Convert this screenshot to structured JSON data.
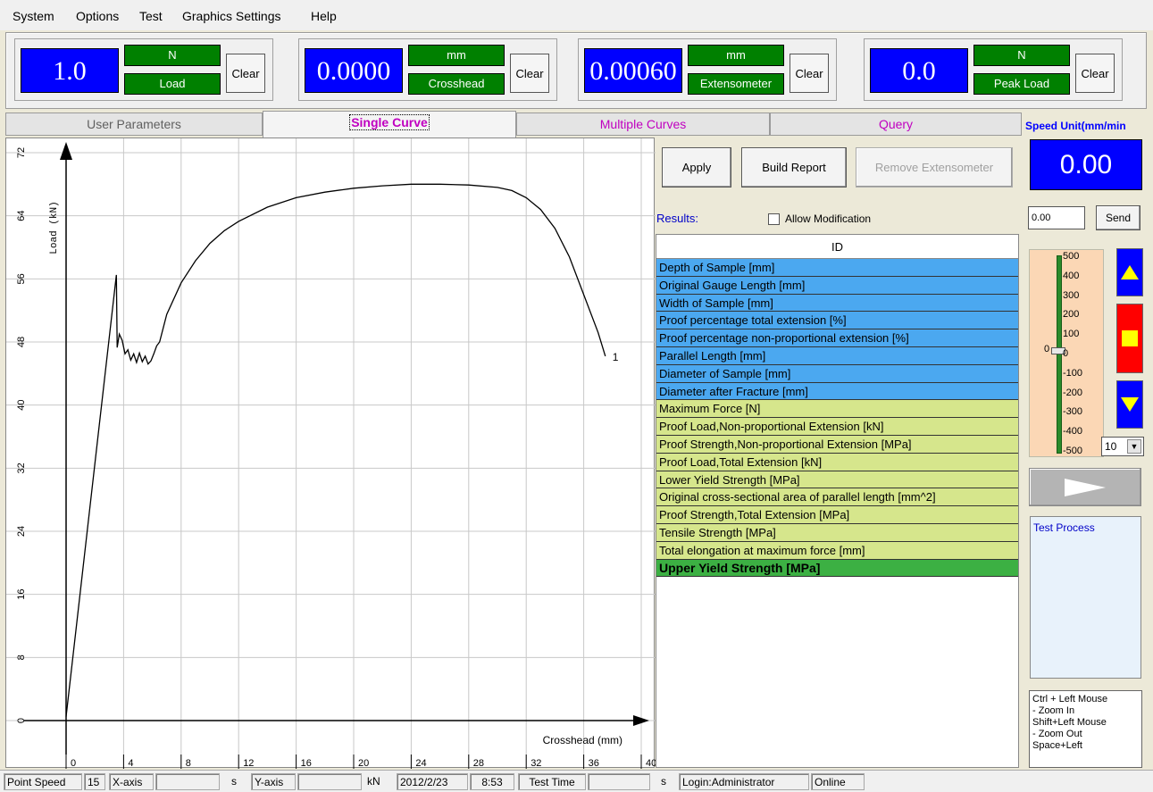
{
  "menu": [
    "System",
    "Options",
    "Test",
    "Graphics Settings",
    "Help"
  ],
  "readouts": [
    {
      "value": "1.0",
      "unit": "N",
      "name": "Load",
      "clear": "Clear"
    },
    {
      "value": "0.0000",
      "unit": "mm",
      "name": "Crosshead",
      "clear": "Clear"
    },
    {
      "value": "0.00060",
      "unit": "mm",
      "name": "Extensometer",
      "clear": "Clear"
    },
    {
      "value": "0.0",
      "unit": "N",
      "name": "Peak Load",
      "clear": "Clear"
    }
  ],
  "tabs": [
    {
      "label": "User Parameters",
      "active": false,
      "color": "#606060"
    },
    {
      "label": "Single Curve",
      "active": true,
      "color": "#c000c0"
    },
    {
      "label": "Multiple Curves",
      "active": false,
      "color": "#c000c0"
    },
    {
      "label": "Query",
      "active": false,
      "color": "#c000c0"
    }
  ],
  "chart_data": {
    "type": "line",
    "xlabel": "Crosshead (mm)",
    "ylabel": "Load (kN)",
    "xlim": [
      0,
      40
    ],
    "ylim": [
      0,
      72
    ],
    "x_ticks": [
      0,
      4,
      8,
      12,
      16,
      20,
      24,
      28,
      32,
      36,
      40
    ],
    "y_ticks": [
      0,
      8,
      16,
      24,
      32,
      40,
      48,
      56,
      64,
      72
    ],
    "series": [
      {
        "name": "1",
        "x": [
          0,
          3.5,
          3.55,
          3.7,
          3.9,
          4.1,
          4.3,
          4.5,
          4.7,
          4.9,
          5.1,
          5.3,
          5.5,
          5.7,
          5.9,
          6.1,
          6.3,
          6.5,
          7,
          8,
          9,
          10,
          11,
          12,
          14,
          16,
          18,
          20,
          22,
          24,
          26,
          28,
          30,
          31,
          32,
          33,
          34,
          35,
          36,
          37,
          37.5
        ],
        "y": [
          0.5,
          56.5,
          47.3,
          49,
          48.2,
          46.5,
          47,
          45.7,
          46.5,
          45.4,
          46.6,
          45.5,
          46.2,
          45.2,
          45.6,
          46.5,
          47.5,
          48,
          51.5,
          55.5,
          58.3,
          60.5,
          62.1,
          63.3,
          65.1,
          66.3,
          67,
          67.5,
          67.8,
          68,
          68,
          67.9,
          67.6,
          67.2,
          66.3,
          64.8,
          62.4,
          58.8,
          54,
          49.2,
          46.2
        ]
      }
    ],
    "curve_label": "1",
    "grid": true
  },
  "buttons": {
    "apply": "Apply",
    "build_report": "Build Report",
    "remove_extensometer": "Remove Extensometer"
  },
  "results": {
    "label": "Results:",
    "allow_modification": "Allow Modification",
    "header": "ID",
    "rows": [
      {
        "label": "Depth of Sample  [mm]",
        "kind": "blue"
      },
      {
        "label": "Original Gauge Length  [mm]",
        "kind": "blue"
      },
      {
        "label": "Width of Sample  [mm]",
        "kind": "blue"
      },
      {
        "label": "Proof percentage total extension  [%]",
        "kind": "blue"
      },
      {
        "label": "Proof percentage non-proportional extension  [%]",
        "kind": "blue"
      },
      {
        "label": "Parallel Length  [mm]",
        "kind": "blue"
      },
      {
        "label": "Diameter of Sample  [mm]",
        "kind": "blue"
      },
      {
        "label": "Diameter after Fracture  [mm]",
        "kind": "blue"
      },
      {
        "label": "Maximum Force  [N]",
        "kind": "yellow"
      },
      {
        "label": "Proof Load,Non-proportional Extension  [kN]",
        "kind": "yellow"
      },
      {
        "label": "Proof Strength,Non-proportional Extension  [MPa]",
        "kind": "yellow"
      },
      {
        "label": "Proof Load,Total Extension  [kN]",
        "kind": "yellow"
      },
      {
        "label": "Lower Yield Strength  [MPa]",
        "kind": "yellow"
      },
      {
        "label": "Original cross-sectional area of parallel length  [mm^2]",
        "kind": "yellow"
      },
      {
        "label": "Proof Strength,Total Extension  [MPa]",
        "kind": "yellow"
      },
      {
        "label": "Tensile Strength  [MPa]",
        "kind": "yellow"
      },
      {
        "label": "Total elongation at maximum force  [mm]",
        "kind": "yellow"
      },
      {
        "label": "Upper Yield Strength  [MPa]",
        "kind": "green"
      }
    ]
  },
  "speed": {
    "title": "Speed Unit(mm/min",
    "value": "0.00",
    "input_value": "0.00",
    "send": "Send",
    "slider_labels": [
      "500",
      "400",
      "300",
      "200",
      "100",
      "0",
      "-100",
      "-200",
      "-300",
      "-400",
      "-500"
    ],
    "slider_zero": "0",
    "rate": "10",
    "test_process": "Test Process",
    "help_lines": [
      "Ctrl + Left Mouse",
      "- Zoom In",
      "Shift+Left Mouse",
      "- Zoom Out",
      "Space+Left"
    ]
  },
  "colors": {
    "readout_bg": "#0000ff",
    "label_bg": "#008000",
    "stop": "#ff0000",
    "arrow": "#ffff00",
    "jog_bg": "#0000ff"
  },
  "status": {
    "point_speed_label": "Point Speed",
    "point_speed": "15",
    "x_axis_label": "X-axis",
    "x_unit": "s",
    "y_axis_label": "Y-axis",
    "y_unit": "kN",
    "date": "2012/2/23",
    "time": "8:53",
    "test_time_label": "Test Time",
    "test_time_unit": "s",
    "login": "Login:Administrator",
    "online": "Online"
  }
}
